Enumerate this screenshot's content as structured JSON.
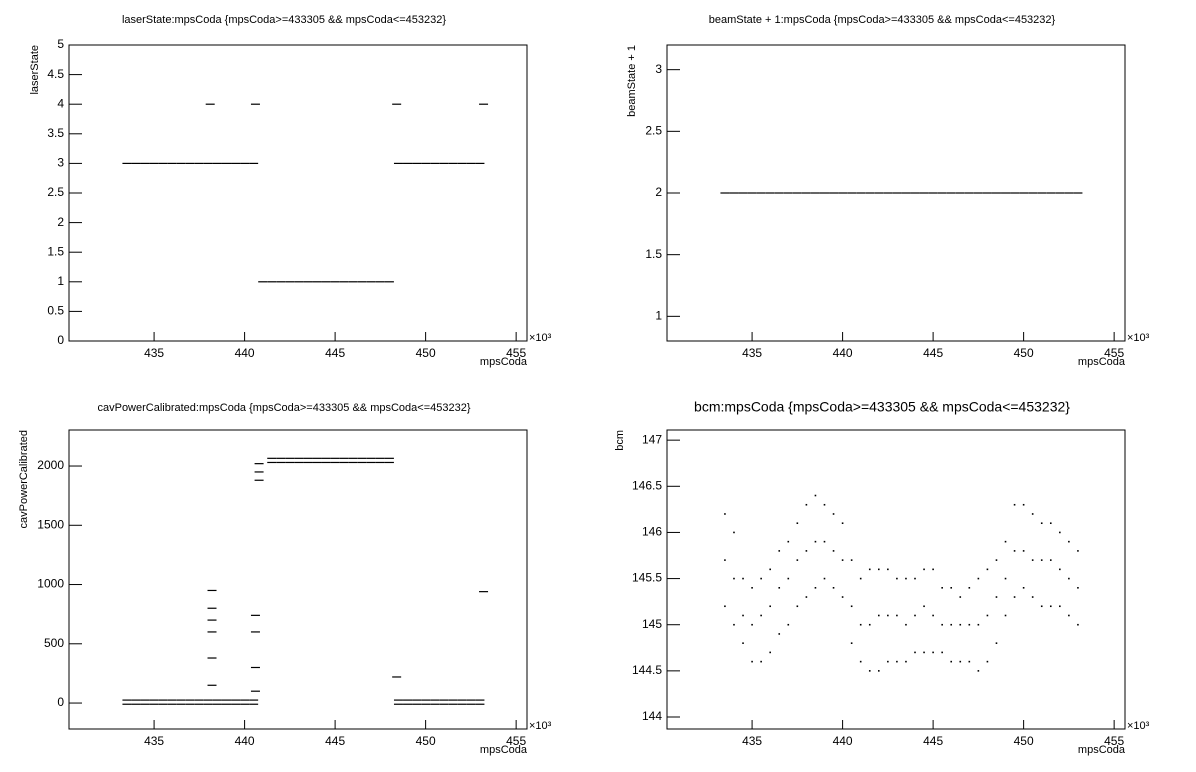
{
  "chart_data": [
    {
      "type": "scatter",
      "title": "laserState:mpsCoda {mpsCoda>=433305 && mpsCoda<=453232}",
      "x_label": "mpsCoda",
      "y_label": "laserState",
      "x_exponent_label": "×10³",
      "xlim": [
        430.3,
        455.6
      ],
      "xticks": [
        435,
        440,
        445,
        450,
        455
      ],
      "ylim": [
        0,
        5
      ],
      "yticks": [
        0,
        0.5,
        1,
        1.5,
        2,
        2.5,
        3,
        3.5,
        4,
        4.5,
        5
      ],
      "color": "#000000",
      "x": [
        433.5,
        434,
        434.5,
        435,
        435.5,
        436,
        436.5,
        437,
        437.5,
        438,
        438.5,
        439,
        439.5,
        440,
        440.5,
        441,
        441.5,
        442,
        442.5,
        443,
        443.5,
        444,
        444.5,
        445,
        445.5,
        446,
        446.5,
        447,
        447.5,
        448,
        448.5,
        449,
        449.5,
        450,
        450.5,
        451,
        451.5,
        452,
        452.5,
        453,
        438.1,
        440.6,
        448.4,
        453.2
      ],
      "values": [
        3,
        3,
        3,
        3,
        3,
        3,
        3,
        3,
        3,
        3,
        3,
        3,
        3,
        3,
        3,
        1,
        1,
        1,
        1,
        1,
        1,
        1,
        1,
        1,
        1,
        1,
        1,
        1,
        1,
        1,
        3,
        3,
        3,
        3,
        3,
        3,
        3,
        3,
        3,
        3,
        4,
        4,
        4,
        4
      ]
    },
    {
      "type": "scatter",
      "title": "beamState + 1:mpsCoda {mpsCoda>=433305 && mpsCoda<=453232}",
      "x_label": "mpsCoda",
      "y_label": "beamState + 1",
      "x_exponent_label": "×10³",
      "xlim": [
        430.3,
        455.6
      ],
      "xticks": [
        435,
        440,
        445,
        450,
        455
      ],
      "ylim": [
        0.8,
        3.2
      ],
      "yticks": [
        1,
        1.5,
        2,
        2.5,
        3
      ],
      "color": "#000000",
      "x": [
        433.5,
        434,
        434.5,
        435,
        435.5,
        436,
        436.5,
        437,
        437.5,
        438,
        438.5,
        439,
        439.5,
        440,
        440.5,
        441,
        441.5,
        442,
        442.5,
        443,
        443.5,
        444,
        444.5,
        445,
        445.5,
        446,
        446.5,
        447,
        447.5,
        448,
        448.5,
        449,
        449.5,
        450,
        450.5,
        451,
        451.5,
        452,
        452.5,
        453
      ],
      "values": [
        2,
        2,
        2,
        2,
        2,
        2,
        2,
        2,
        2,
        2,
        2,
        2,
        2,
        2,
        2,
        2,
        2,
        2,
        2,
        2,
        2,
        2,
        2,
        2,
        2,
        2,
        2,
        2,
        2,
        2,
        2,
        2,
        2,
        2,
        2,
        2,
        2,
        2,
        2,
        2
      ]
    },
    {
      "type": "scatter",
      "title": "cavPowerCalibrated:mpsCoda {mpsCoda>=433305 && mpsCoda<=453232}",
      "x_label": "mpsCoda",
      "y_label": "cavPowerCalibrated",
      "x_exponent_label": "×10³",
      "xlim": [
        430.3,
        455.6
      ],
      "xticks": [
        435,
        440,
        445,
        450,
        455
      ],
      "ylim": [
        -219,
        2304
      ],
      "yticks": [
        0,
        500,
        1000,
        1500,
        2000
      ],
      "color": "#000000",
      "x": [
        433.5,
        433.5,
        434,
        434,
        434.5,
        434.5,
        435,
        435,
        435.5,
        435.5,
        436,
        436,
        436.5,
        436.5,
        437,
        437,
        437.5,
        437.5,
        438,
        438,
        438.5,
        438.5,
        439,
        439,
        439.5,
        439.5,
        440,
        440,
        440.5,
        440.5,
        441.5,
        441.5,
        442,
        442,
        442.5,
        442.5,
        443,
        443,
        443.5,
        443.5,
        444,
        444,
        444.5,
        444.5,
        445,
        445,
        445.5,
        445.5,
        446,
        446,
        446.5,
        446.5,
        447,
        447,
        447.5,
        447.5,
        448,
        448,
        448.5,
        448.5,
        449,
        449,
        449.5,
        449.5,
        450,
        450,
        450.5,
        450.5,
        451,
        451,
        451.5,
        451.5,
        452,
        452,
        452.5,
        452.5,
        453,
        453,
        438.2,
        438.2,
        438.2,
        438.2,
        438.2,
        438.2,
        440.6,
        440.6,
        440.6,
        440.6,
        440.8,
        440.8,
        440.8,
        453.2,
        448.4
      ],
      "values": [
        -10,
        25,
        -10,
        25,
        -10,
        25,
        -10,
        25,
        -10,
        25,
        -10,
        25,
        -10,
        25,
        -10,
        25,
        -10,
        25,
        -10,
        25,
        -10,
        25,
        -10,
        25,
        -10,
        25,
        -10,
        25,
        -10,
        25,
        2030,
        2065,
        2030,
        2065,
        2030,
        2065,
        2030,
        2065,
        2030,
        2065,
        2030,
        2065,
        2030,
        2065,
        2030,
        2065,
        2030,
        2065,
        2030,
        2065,
        2030,
        2065,
        2030,
        2065,
        2030,
        2065,
        2030,
        2065,
        -10,
        25,
        -10,
        25,
        -10,
        25,
        -10,
        25,
        -10,
        25,
        -10,
        25,
        -10,
        25,
        -10,
        25,
        -10,
        25,
        -10,
        25,
        150,
        380,
        600,
        700,
        800,
        950,
        100,
        300,
        600,
        740,
        1880,
        1950,
        2020,
        940,
        220
      ]
    },
    {
      "type": "scatter",
      "title": "bcm:mpsCoda {mpsCoda>=433305 && mpsCoda<=453232}",
      "x_label": "mpsCoda",
      "y_label": "bcm",
      "x_exponent_label": "×10³",
      "xlim": [
        430.3,
        455.6
      ],
      "xticks": [
        435,
        440,
        445,
        450,
        455
      ],
      "ylim": [
        143.87,
        147.11
      ],
      "yticks": [
        144,
        144.5,
        145,
        145.5,
        146,
        146.5,
        147
      ],
      "color": "#000000",
      "x": [
        433.5,
        433.5,
        433.5,
        434,
        434,
        434,
        434.5,
        434.5,
        434.5,
        435,
        435,
        435,
        435.5,
        435.5,
        435.5,
        436,
        436,
        436,
        436.5,
        436.5,
        436.5,
        437,
        437,
        437,
        437.5,
        437.5,
        437.5,
        438,
        438,
        438,
        438.5,
        438.5,
        438.5,
        439,
        439,
        439,
        439.5,
        439.5,
        439.5,
        440,
        440,
        440,
        440.5,
        440.5,
        440.5,
        441,
        441,
        441,
        441.5,
        441.5,
        441.5,
        442,
        442,
        442,
        442.5,
        442.5,
        442.5,
        443,
        443,
        443,
        443.5,
        443.5,
        443.5,
        444,
        444,
        444,
        444.5,
        444.5,
        444.5,
        445,
        445,
        445,
        445.5,
        445.5,
        445.5,
        446,
        446,
        446,
        446.5,
        446.5,
        446.5,
        447,
        447,
        447,
        447.5,
        447.5,
        447.5,
        448,
        448,
        448,
        448.5,
        448.5,
        448.5,
        449,
        449,
        449,
        449.5,
        449.5,
        449.5,
        450,
        450,
        450,
        450.5,
        450.5,
        450.5,
        451,
        451,
        451,
        451.5,
        451.5,
        451.5,
        452,
        452,
        452,
        452.5,
        452.5,
        452.5,
        453,
        453,
        453
      ],
      "values": [
        145.2,
        145.7,
        146.2,
        145.0,
        145.5,
        146.0,
        144.8,
        145.1,
        145.5,
        144.6,
        145.0,
        145.4,
        144.6,
        145.1,
        145.5,
        144.7,
        145.2,
        145.6,
        144.9,
        145.4,
        145.8,
        145.0,
        145.5,
        145.9,
        145.2,
        145.7,
        146.1,
        145.3,
        145.8,
        146.3,
        145.4,
        145.9,
        146.4,
        145.5,
        145.9,
        146.3,
        145.4,
        145.8,
        146.2,
        145.3,
        145.7,
        146.1,
        144.8,
        145.2,
        145.7,
        144.6,
        145.0,
        145.5,
        144.5,
        145.0,
        145.6,
        144.5,
        145.1,
        145.6,
        144.6,
        145.1,
        145.6,
        144.6,
        145.1,
        145.5,
        144.6,
        145.0,
        145.5,
        144.7,
        145.1,
        145.5,
        144.7,
        145.2,
        145.6,
        144.7,
        145.1,
        145.6,
        144.7,
        145.0,
        145.4,
        144.6,
        145.0,
        145.4,
        144.6,
        145.0,
        145.3,
        144.6,
        145.0,
        145.4,
        144.5,
        145.0,
        145.5,
        144.6,
        145.1,
        145.6,
        144.8,
        145.3,
        145.7,
        145.1,
        145.5,
        145.9,
        145.3,
        145.8,
        146.3,
        145.4,
        145.8,
        146.3,
        145.3,
        145.7,
        146.2,
        145.2,
        145.7,
        146.1,
        145.2,
        145.7,
        146.1,
        145.2,
        145.6,
        146.0,
        145.1,
        145.5,
        145.9,
        145.0,
        145.4,
        145.8
      ]
    }
  ]
}
